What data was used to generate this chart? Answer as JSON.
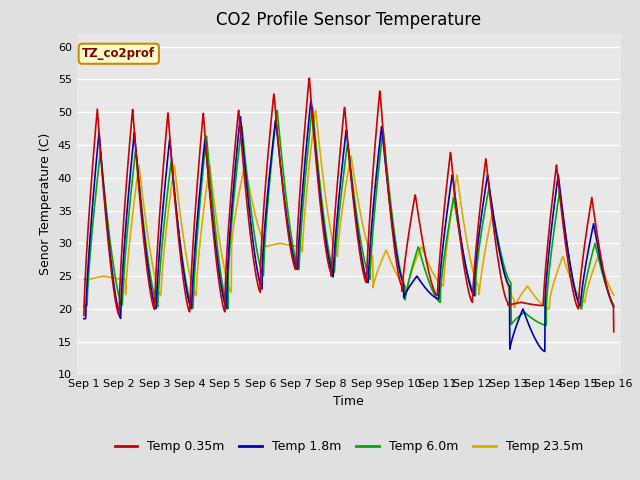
{
  "title": "CO2 Profile Sensor Temperature",
  "xlabel": "Time",
  "ylabel": "Senor Temperature (C)",
  "ylim": [
    10,
    62
  ],
  "yticks": [
    10,
    15,
    20,
    25,
    30,
    35,
    40,
    45,
    50,
    55,
    60
  ],
  "xtick_labels": [
    "Sep 1",
    "Sep 2",
    "Sep 3",
    "Sep 4",
    "Sep 5",
    "Sep 6",
    "Sep 7",
    "Sep 8",
    "Sep 9",
    "Sep 10",
    "Sep 11",
    "Sep 12",
    "Sep 13",
    "Sep 14",
    "Sep 15",
    "Sep 16"
  ],
  "line_colors": [
    "#cc0000",
    "#0000bb",
    "#00aa00",
    "#ddaa00"
  ],
  "line_labels": [
    "Temp 0.35m",
    "Temp 1.8m",
    "Temp 6.0m",
    "Temp 23.5m"
  ],
  "line_width": 1.2,
  "background_color": "#e0e0e0",
  "plot_bg_color": "#e8e8e8",
  "grid_color": "#ffffff",
  "annotation_text": "TZ_co2prof",
  "annotation_bg": "#ffffcc",
  "annotation_border": "#cc8800",
  "title_fontsize": 12,
  "label_fontsize": 9,
  "tick_fontsize": 8
}
